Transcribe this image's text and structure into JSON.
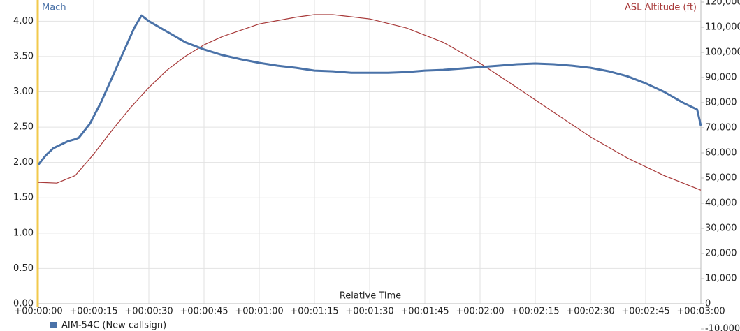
{
  "chart_data": {
    "type": "line",
    "title": "Mach",
    "y2_label": "ASL Altitude (ft)",
    "x_label": "Relative Time",
    "x": [
      0,
      2,
      4,
      6,
      8,
      10,
      11,
      14,
      17,
      20,
      23,
      26,
      28,
      30,
      35,
      40,
      45,
      50,
      55,
      60,
      65,
      70,
      75,
      80,
      85,
      90,
      95,
      100,
      105,
      110,
      115,
      120,
      125,
      130,
      135,
      140,
      145,
      150,
      155,
      160,
      165,
      170,
      175,
      179,
      180
    ],
    "series": [
      {
        "name": "AIM-54C (New callsign)",
        "color": "#4a72a8",
        "axis": "y",
        "values": [
          1.97,
          2.1,
          2.2,
          2.25,
          2.3,
          2.33,
          2.35,
          2.55,
          2.85,
          3.2,
          3.55,
          3.9,
          4.08,
          4.0,
          3.85,
          3.7,
          3.6,
          3.52,
          3.46,
          3.41,
          3.37,
          3.34,
          3.3,
          3.29,
          3.27,
          3.27,
          3.27,
          3.28,
          3.3,
          3.31,
          3.33,
          3.35,
          3.37,
          3.39,
          3.4,
          3.39,
          3.37,
          3.34,
          3.29,
          3.22,
          3.12,
          3.0,
          2.85,
          2.75,
          2.52
        ]
      }
    ],
    "altitude": {
      "color": "#a83a3a",
      "axis": "y2",
      "x": [
        0,
        5,
        10,
        15,
        20,
        25,
        30,
        35,
        40,
        45,
        50,
        60,
        70,
        75,
        80,
        90,
        100,
        110,
        120,
        130,
        140,
        150,
        160,
        170,
        180
      ],
      "values": [
        48300,
        48000,
        51000,
        59500,
        69000,
        78000,
        86000,
        93000,
        98500,
        103000,
        106300,
        111300,
        114000,
        115000,
        115000,
        113300,
        109700,
        104000,
        95700,
        86000,
        76200,
        66400,
        58000,
        51000,
        45200
      ]
    },
    "xlim": [
      0,
      180
    ],
    "xticks": [
      {
        "value": 0,
        "label": "+00:00:00"
      },
      {
        "value": 15,
        "label": "+00:00:15"
      },
      {
        "value": 30,
        "label": "+00:00:30"
      },
      {
        "value": 45,
        "label": "+00:00:45"
      },
      {
        "value": 60,
        "label": "+00:01:00"
      },
      {
        "value": 75,
        "label": "+00:01:15"
      },
      {
        "value": 90,
        "label": "+00:01:30"
      },
      {
        "value": 105,
        "label": "+00:01:45"
      },
      {
        "value": 120,
        "label": "+00:02:00"
      },
      {
        "value": 135,
        "label": "+00:02:15"
      },
      {
        "value": 150,
        "label": "+00:02:30"
      },
      {
        "value": 165,
        "label": "+00:02:45"
      },
      {
        "value": 180,
        "label": "+00:03:00"
      }
    ],
    "ylim": [
      0,
      4.27
    ],
    "yticks": [
      {
        "value": 0,
        "label": "0.00"
      },
      {
        "value": 0.5,
        "label": "0.50"
      },
      {
        "value": 1,
        "label": "1.00"
      },
      {
        "value": 1.5,
        "label": "1.50"
      },
      {
        "value": 2,
        "label": "2.00"
      },
      {
        "value": 2.5,
        "label": "2.50"
      },
      {
        "value": 3,
        "label": "3.00"
      },
      {
        "value": 3.5,
        "label": "3.50"
      },
      {
        "value": 4,
        "label": "4.00"
      }
    ],
    "y2lim": [
      0,
      120000
    ],
    "y2ticks": [
      {
        "value": -10000,
        "label": "-10,000"
      },
      0,
      {
        "value": 10000,
        "label": "10,000"
      },
      {
        "value": 20000,
        "label": "20,000"
      },
      {
        "value": 30000,
        "label": "30,000"
      },
      {
        "value": 40000,
        "label": "40,000"
      },
      {
        "value": 50000,
        "label": "50,000"
      },
      {
        "value": 60000,
        "label": "60,000"
      },
      {
        "value": 70000,
        "label": "70,000"
      },
      {
        "value": 80000,
        "label": "80,000"
      },
      {
        "value": 90000,
        "label": "90,000"
      },
      {
        "value": 100000,
        "label": "100,000"
      },
      {
        "value": 110000,
        "label": "110,000"
      },
      {
        "value": 120000,
        "label": "120,000"
      }
    ],
    "grid": true
  }
}
